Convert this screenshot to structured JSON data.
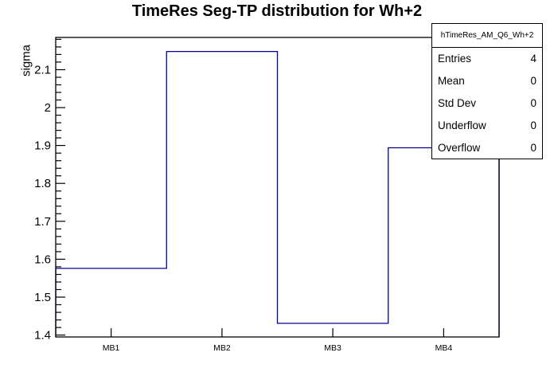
{
  "chart_data": {
    "type": "bar",
    "subtype": "step-outline-histogram",
    "title": "TimeRes Seg-TP distribution for Wh+2",
    "xlabel": "",
    "ylabel": "sigma",
    "categories": [
      "MB1",
      "MB2",
      "MB3",
      "MB4"
    ],
    "values": [
      1.576,
      2.148,
      1.431,
      1.894
    ],
    "ylim": [
      1.395,
      2.185
    ],
    "yticks": [
      "1.4",
      "1.5",
      "1.6",
      "1.7",
      "1.8",
      "1.9",
      "2",
      "2.1"
    ],
    "y_minor_step": 0.02,
    "grid": false,
    "legend": "none",
    "line_color": "#000099",
    "frame_color": "#000000",
    "background_color": "#ffffff"
  },
  "stats_box": {
    "title": "hTimeRes_AM_Q6_Wh+2",
    "rows": [
      {
        "label": "Entries",
        "value": "4"
      },
      {
        "label": "Mean",
        "value": "0"
      },
      {
        "label": "Std Dev",
        "value": "0"
      },
      {
        "label": "Underflow",
        "value": "0"
      },
      {
        "label": "Overflow",
        "value": "0"
      }
    ]
  }
}
